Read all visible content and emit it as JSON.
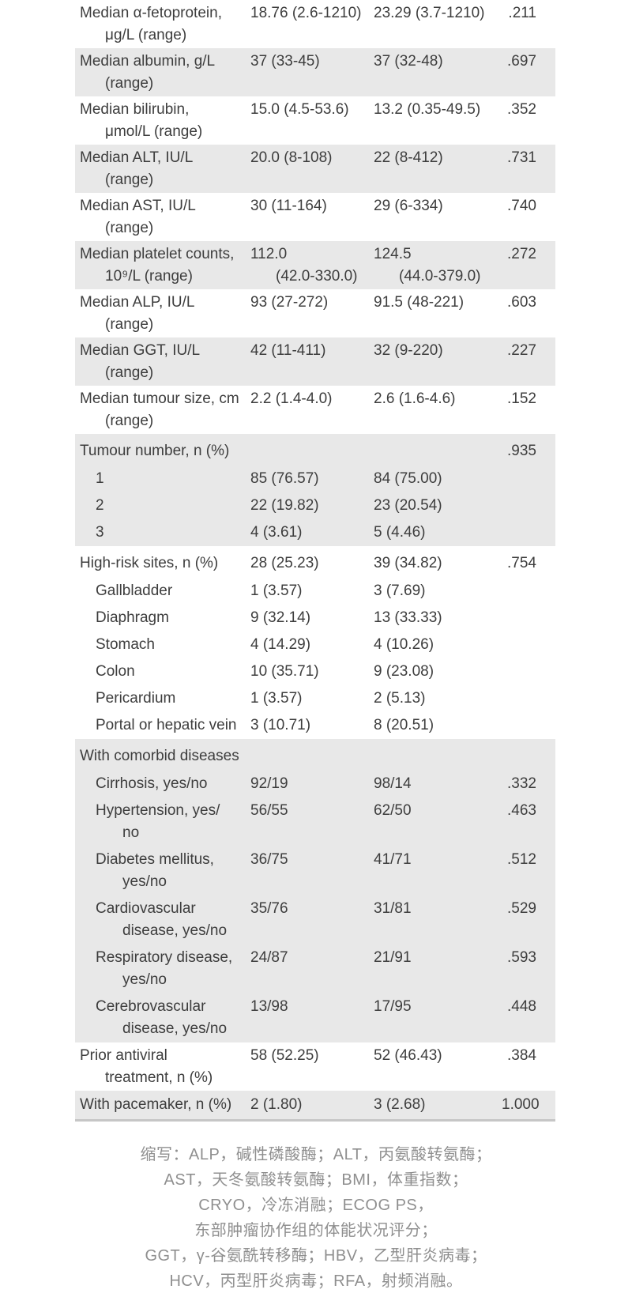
{
  "table": {
    "rows": [
      {
        "type": "data",
        "bg": "white",
        "label": [
          "Median α-fetoprotein,",
          "μg/L (range)"
        ],
        "v1": [
          "18.76 (2.6-1210)"
        ],
        "v2": [
          "23.29 (3.7-1210)"
        ],
        "p": ".211"
      },
      {
        "type": "data",
        "bg": "gray",
        "label": [
          "Median albumin, g/L",
          "(range)"
        ],
        "v1": [
          "37 (33-45)"
        ],
        "v2": [
          "37 (32-48)"
        ],
        "p": ".697"
      },
      {
        "type": "data",
        "bg": "white",
        "label": [
          "Median bilirubin,",
          "μmol/L (range)"
        ],
        "v1": [
          "15.0 (4.5-53.6)"
        ],
        "v2": [
          "13.2 (0.35-49.5)"
        ],
        "p": ".352"
      },
      {
        "type": "data",
        "bg": "gray",
        "label": [
          "Median ALT, IU/L",
          "(range)"
        ],
        "v1": [
          "20.0 (8-108)"
        ],
        "v2": [
          "22 (8-412)"
        ],
        "p": ".731"
      },
      {
        "type": "data",
        "bg": "white",
        "label": [
          "Median AST, IU/L",
          "(range)"
        ],
        "v1": [
          "30 (11-164)"
        ],
        "v2": [
          "29 (6-334)"
        ],
        "p": ".740"
      },
      {
        "type": "data",
        "bg": "gray",
        "label": [
          "Median platelet counts,",
          "10⁹/L (range)"
        ],
        "v1": [
          "112.0",
          "(42.0-330.0)"
        ],
        "v2": [
          "124.5",
          "(44.0-379.0)"
        ],
        "p": ".272"
      },
      {
        "type": "data",
        "bg": "white",
        "label": [
          "Median ALP, IU/L",
          "(range)"
        ],
        "v1": [
          "93 (27-272)"
        ],
        "v2": [
          "91.5 (48-221)"
        ],
        "p": ".603"
      },
      {
        "type": "data",
        "bg": "gray",
        "label": [
          "Median GGT, IU/L",
          "(range)"
        ],
        "v1": [
          "42 (11-411)"
        ],
        "v2": [
          "32 (9-220)"
        ],
        "p": ".227"
      },
      {
        "type": "data",
        "bg": "white",
        "label": [
          "Median tumour size, cm",
          "(range)"
        ],
        "v1": [
          "2.2 (1.4-4.0)"
        ],
        "v2": [
          "2.6 (1.6-4.6)"
        ],
        "p": ".152"
      },
      {
        "type": "header",
        "bg": "gray",
        "label": [
          "Tumour number, n (%)"
        ],
        "v1": [],
        "v2": [],
        "p": ".935"
      },
      {
        "type": "sub",
        "bg": "gray",
        "label": [
          "1"
        ],
        "v1": [
          "85 (76.57)"
        ],
        "v2": [
          "84 (75.00)"
        ],
        "p": ""
      },
      {
        "type": "sub",
        "bg": "gray",
        "label": [
          "2"
        ],
        "v1": [
          "22 (19.82)"
        ],
        "v2": [
          "23 (20.54)"
        ],
        "p": ""
      },
      {
        "type": "sub",
        "bg": "gray",
        "label": [
          "3"
        ],
        "v1": [
          "4 (3.61)"
        ],
        "v2": [
          "5 (4.46)"
        ],
        "p": ""
      },
      {
        "type": "header",
        "bg": "white",
        "label": [
          "High-risk sites, n (%)"
        ],
        "v1": [
          "28 (25.23)"
        ],
        "v2": [
          "39 (34.82)"
        ],
        "p": ".754"
      },
      {
        "type": "sub",
        "bg": "white",
        "label": [
          "Gallbladder"
        ],
        "v1": [
          "1 (3.57)"
        ],
        "v2": [
          "3 (7.69)"
        ],
        "p": ""
      },
      {
        "type": "sub",
        "bg": "white",
        "label": [
          "Diaphragm"
        ],
        "v1": [
          "9 (32.14)"
        ],
        "v2": [
          "13 (33.33)"
        ],
        "p": ""
      },
      {
        "type": "sub",
        "bg": "white",
        "label": [
          "Stomach"
        ],
        "v1": [
          "4 (14.29)"
        ],
        "v2": [
          "4 (10.26)"
        ],
        "p": ""
      },
      {
        "type": "sub",
        "bg": "white",
        "label": [
          "Colon"
        ],
        "v1": [
          "10 (35.71)"
        ],
        "v2": [
          "9 (23.08)"
        ],
        "p": ""
      },
      {
        "type": "sub",
        "bg": "white",
        "label": [
          "Pericardium"
        ],
        "v1": [
          "1 (3.57)"
        ],
        "v2": [
          "2 (5.13)"
        ],
        "p": ""
      },
      {
        "type": "sub",
        "bg": "white",
        "label": [
          "Portal or hepatic vein"
        ],
        "v1": [
          "3 (10.71)"
        ],
        "v2": [
          "8 (20.51)"
        ],
        "p": ""
      },
      {
        "type": "header",
        "bg": "gray",
        "label": [
          "With comorbid diseases"
        ],
        "v1": [],
        "v2": [],
        "p": ""
      },
      {
        "type": "sub",
        "bg": "gray",
        "label": [
          "Cirrhosis, yes/no"
        ],
        "v1": [
          "92/19"
        ],
        "v2": [
          "98/14"
        ],
        "p": ".332"
      },
      {
        "type": "sub",
        "bg": "gray",
        "label": [
          "Hypertension, yes/",
          "no"
        ],
        "v1": [
          "56/55"
        ],
        "v2": [
          "62/50"
        ],
        "p": ".463"
      },
      {
        "type": "sub",
        "bg": "gray",
        "label": [
          "Diabetes mellitus,",
          "yes/no"
        ],
        "v1": [
          "36/75"
        ],
        "v2": [
          "41/71"
        ],
        "p": ".512"
      },
      {
        "type": "sub",
        "bg": "gray",
        "label": [
          "Cardiovascular",
          "disease, yes/no"
        ],
        "v1": [
          "35/76"
        ],
        "v2": [
          "31/81"
        ],
        "p": ".529"
      },
      {
        "type": "sub",
        "bg": "gray",
        "label": [
          "Respiratory disease,",
          "yes/no"
        ],
        "v1": [
          "24/87"
        ],
        "v2": [
          "21/91"
        ],
        "p": ".593"
      },
      {
        "type": "sub",
        "bg": "gray",
        "label": [
          "Cerebrovascular",
          "disease, yes/no"
        ],
        "v1": [
          "13/98"
        ],
        "v2": [
          "17/95"
        ],
        "p": ".448"
      },
      {
        "type": "data",
        "bg": "white",
        "label": [
          "Prior antiviral",
          "treatment, n (%)"
        ],
        "v1": [
          "58 (52.25)"
        ],
        "v2": [
          "52 (46.43)"
        ],
        "p": ".384"
      },
      {
        "type": "data",
        "bg": "gray",
        "label": [
          "With pacemaker, n (%)"
        ],
        "v1": [
          "2 (1.80)"
        ],
        "v2": [
          "3 (2.68)"
        ],
        "p": "1.000"
      }
    ]
  },
  "footnote": {
    "lines": [
      "缩写：ALP，碱性磷酸酶；ALT，丙氨酸转氨酶；",
      "AST，天冬氨酸转氨酶；BMI，体重指数；",
      "CRYO，冷冻消融；ECOG PS，",
      "东部肿瘤协作组的体能状况评分；",
      "GGT，γ-谷氨酰转移酶；HBV，乙型肝炎病毒；",
      "HCV，丙型肝炎病毒；RFA，射频消融。"
    ]
  },
  "colors": {
    "row_stripe": "#e8e8e8",
    "table_text": "#3d3d3d",
    "bottom_border": "#c6c6c6",
    "footnote_text": "#8f8f8f"
  }
}
